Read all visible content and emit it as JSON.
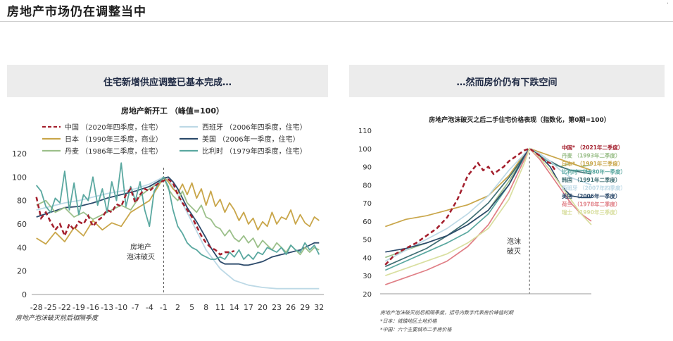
{
  "page": {
    "title": "房地产市场仍在调整当中",
    "corner_mark": "·"
  },
  "left_panel": {
    "header": "住宅新增供应调整已基本完成…"
  },
  "right_panel": {
    "header": "…然而房价仍有下跌空间"
  },
  "chart_data": [
    {
      "type": "line",
      "title": "房地产新开工 （峰值=100）",
      "xlabel": "",
      "ylabel": "",
      "ylim": [
        0,
        120
      ],
      "xlim": [
        -29,
        33
      ],
      "xticks": [
        -28,
        -25,
        -22,
        -19,
        -16,
        -13,
        -10,
        -7,
        -4,
        -1,
        2,
        5,
        8,
        11,
        14,
        17,
        20,
        23,
        26,
        29,
        32
      ],
      "yticks": [
        0,
        20,
        40,
        60,
        80,
        100,
        120
      ],
      "annotation": "房地产\n泡沫破灭",
      "annotation_x": -1,
      "footnote": "房地产泡沫破灭前后相隔季度",
      "legend_position": "top",
      "series": [
        {
          "name": "中国 （2020年四季度，住宅）",
          "color": "#a4202e",
          "dash": true,
          "x": [
            -28,
            -27,
            -26,
            -25,
            -24,
            -23,
            -22,
            -21,
            -20,
            -19,
            -18,
            -17,
            -16,
            -15,
            -14,
            -13,
            -12,
            -11,
            -10,
            -9,
            -8,
            -7,
            -6,
            -5,
            -4,
            -3,
            -2,
            -1,
            0,
            1,
            2,
            3,
            4,
            5,
            6,
            7,
            8,
            9,
            10,
            11,
            12,
            13,
            14
          ],
          "y": [
            83,
            65,
            70,
            62,
            55,
            60,
            50,
            60,
            55,
            62,
            60,
            67,
            58,
            63,
            66,
            72,
            70,
            77,
            75,
            85,
            90,
            78,
            85,
            90,
            88,
            92,
            95,
            97,
            98,
            95,
            85,
            78,
            72,
            66,
            58,
            50,
            44,
            40,
            38,
            34,
            36,
            36,
            37
          ]
        },
        {
          "name": "西班牙 （2006年四季度，住宅）",
          "color": "#bdd9e6",
          "dash": false,
          "x": [
            -28,
            -25,
            -22,
            -19,
            -16,
            -13,
            -10,
            -7,
            -4,
            -1,
            0,
            2,
            5,
            8,
            11,
            14,
            17,
            20,
            23,
            26,
            29,
            32
          ],
          "y": [
            72,
            75,
            78,
            80,
            83,
            86,
            88,
            90,
            94,
            100,
            98,
            85,
            62,
            38,
            22,
            12,
            8,
            6,
            5,
            5,
            5,
            5
          ]
        },
        {
          "name": "日本 （1990年三季度，商业）",
          "color": "#c9a64a",
          "dash": false,
          "x": [
            -28,
            -26,
            -24,
            -22,
            -20,
            -18,
            -16,
            -14,
            -12,
            -10,
            -8,
            -6,
            -4,
            -2,
            -1,
            0,
            1,
            2,
            3,
            4,
            5,
            6,
            7,
            8,
            9,
            10,
            11,
            12,
            13,
            14,
            15,
            16,
            17,
            18,
            19,
            20,
            21,
            22,
            23,
            24,
            25,
            26,
            27,
            28,
            29,
            30,
            31,
            32
          ],
          "y": [
            48,
            43,
            53,
            45,
            57,
            50,
            63,
            55,
            61,
            58,
            70,
            75,
            80,
            93,
            100,
            96,
            90,
            86,
            94,
            85,
            95,
            82,
            90,
            76,
            88,
            75,
            81,
            70,
            78,
            72,
            63,
            70,
            60,
            65,
            55,
            62,
            58,
            70,
            60,
            66,
            64,
            72,
            60,
            68,
            61,
            58,
            66,
            63
          ]
        },
        {
          "name": "美国 （2006年一季度，住宅）",
          "color": "#2c4a6b",
          "dash": false,
          "x": [
            -28,
            -25,
            -22,
            -19,
            -16,
            -13,
            -10,
            -7,
            -4,
            -1,
            0,
            1,
            2,
            3,
            4,
            5,
            6,
            7,
            8,
            9,
            10,
            11,
            12,
            13,
            14,
            15,
            16,
            17,
            18,
            19,
            20,
            21,
            22,
            23,
            24,
            25,
            26,
            27,
            28,
            29,
            30,
            31,
            32
          ],
          "y": [
            66,
            70,
            74,
            75,
            78,
            82,
            85,
            88,
            92,
            99,
            100,
            96,
            90,
            82,
            74,
            68,
            62,
            55,
            48,
            40,
            34,
            28,
            26,
            26,
            26,
            26,
            25,
            25,
            26,
            27,
            28,
            30,
            32,
            33,
            34,
            35,
            36,
            37,
            38,
            40,
            42,
            44,
            44
          ]
        },
        {
          "name": "丹麦 （1986年二季度，住宅）",
          "color": "#9cc08b",
          "dash": false,
          "x": [
            -28,
            -26,
            -24,
            -22,
            -20,
            -18,
            -16,
            -14,
            -12,
            -10,
            -8,
            -6,
            -4,
            -2,
            -1,
            0,
            1,
            2,
            3,
            4,
            5,
            6,
            7,
            8,
            9,
            10,
            11,
            12,
            13,
            14,
            15,
            16,
            17,
            18,
            19,
            20,
            21,
            22,
            23,
            24,
            25,
            26,
            27,
            28,
            29,
            30,
            31,
            32
          ],
          "y": [
            76,
            80,
            70,
            74,
            66,
            70,
            64,
            68,
            72,
            76,
            72,
            84,
            90,
            95,
            100,
            90,
            84,
            80,
            88,
            78,
            74,
            70,
            76,
            66,
            64,
            58,
            56,
            50,
            55,
            48,
            45,
            50,
            44,
            48,
            40,
            46,
            42,
            38,
            44,
            40,
            36,
            42,
            38,
            34,
            40,
            36,
            40,
            38
          ]
        },
        {
          "name": "比利时 （1979年四季度，住宅）",
          "color": "#5aa8a0",
          "dash": false,
          "x": [
            -28,
            -27,
            -26,
            -25,
            -24,
            -23,
            -22,
            -21,
            -20,
            -19,
            -18,
            -17,
            -16,
            -15,
            -14,
            -13,
            -12,
            -11,
            -10,
            -9,
            -8,
            -7,
            -6,
            -5,
            -4,
            -3,
            -2,
            -1,
            0,
            1,
            2,
            3,
            4,
            5,
            6,
            7,
            8,
            9,
            10,
            11,
            12,
            13,
            14,
            15,
            16,
            17,
            18,
            19,
            20,
            21,
            22,
            23,
            24,
            25,
            26,
            27,
            28,
            29,
            30,
            31,
            32
          ],
          "y": [
            93,
            88,
            75,
            70,
            82,
            78,
            105,
            72,
            95,
            68,
            85,
            80,
            100,
            76,
            90,
            70,
            96,
            80,
            112,
            75,
            92,
            80,
            96,
            72,
            58,
            88,
            95,
            100,
            92,
            72,
            58,
            52,
            44,
            40,
            38,
            34,
            32,
            30,
            30,
            32,
            30,
            36,
            32,
            38,
            30,
            34,
            30,
            36,
            34,
            40,
            38,
            36,
            40,
            34,
            42,
            38,
            36,
            44,
            38,
            42,
            34
          ]
        }
      ]
    },
    {
      "type": "line",
      "title": "房地产泡沫破灭之后二手住宅价格表现（指数化，第0期=100）",
      "xlabel": "",
      "ylabel": "",
      "ylim": [
        20,
        110
      ],
      "xlim": [
        -29,
        12
      ],
      "yticks": [
        20,
        30,
        40,
        50,
        60,
        70,
        80,
        90,
        100,
        110
      ],
      "annotation": "泡沫\n破灭",
      "annotation_x": 0,
      "footnote_lines": [
        "房地产泡沫破灭前后相隔季度，括号内数字代表房价峰值时期",
        "*日本：城镇地区土地价格",
        "*中国：六个主要城市二手房价格"
      ],
      "legend_position": "right",
      "series": [
        {
          "name": "中国* （2021年二季度）",
          "color": "#a4202e",
          "dash": true,
          "x": [
            -28,
            -26,
            -24,
            -22,
            -20,
            -18,
            -16,
            -14,
            -12,
            -10,
            -9,
            -8,
            -7,
            -6,
            -5,
            -4,
            -3,
            -2,
            -1,
            0,
            1,
            2,
            3,
            4,
            5
          ],
          "y": [
            36,
            42,
            45,
            48,
            52,
            56,
            62,
            72,
            85,
            92,
            88,
            90,
            86,
            88,
            90,
            93,
            95,
            97,
            99,
            100,
            98,
            96,
            93,
            92,
            88
          ]
        },
        {
          "name": "丹麦 （1993年二季度）",
          "color": "#9cc08b",
          "dash": false,
          "x": [
            -28,
            -24,
            -20,
            -16,
            -12,
            -8,
            -4,
            -1,
            0,
            2,
            4,
            6,
            8,
            10,
            12
          ],
          "y": [
            40,
            44,
            48,
            52,
            58,
            66,
            82,
            96,
            100,
            96,
            92,
            90,
            92,
            90,
            91
          ]
        },
        {
          "name": "日本* （1991年三季度）",
          "color": "#c9a64a",
          "dash": false,
          "x": [
            -28,
            -24,
            -20,
            -16,
            -12,
            -8,
            -4,
            -1,
            0,
            2,
            4,
            6,
            8,
            10,
            12
          ],
          "y": [
            57,
            61,
            63,
            66,
            69,
            74,
            85,
            97,
            100,
            98,
            96,
            94,
            92,
            90,
            88
          ]
        },
        {
          "name": "比利时 （1980年一季度）",
          "color": "#5aa8a0",
          "dash": false,
          "x": [
            -28,
            -24,
            -20,
            -16,
            -12,
            -8,
            -4,
            -1,
            0,
            2,
            4,
            6,
            8,
            10,
            12
          ],
          "y": [
            33,
            38,
            43,
            48,
            54,
            64,
            80,
            95,
            100,
            96,
            92,
            90,
            88,
            88,
            87
          ]
        },
        {
          "name": "韩国 （1991年二季度）",
          "color": "#3f6e73",
          "dash": false,
          "x": [
            -28,
            -24,
            -20,
            -16,
            -12,
            -8,
            -4,
            -1,
            0,
            2,
            4,
            6,
            8,
            10,
            12
          ],
          "y": [
            35,
            40,
            45,
            52,
            60,
            70,
            84,
            96,
            100,
            97,
            93,
            90,
            88,
            87,
            86
          ]
        },
        {
          "name": "西班牙 （2007年四季度）",
          "color": "#bdd9e6",
          "dash": false,
          "x": [
            -28,
            -24,
            -20,
            -16,
            -12,
            -8,
            -4,
            -1,
            0,
            2,
            4,
            6,
            8,
            10,
            12
          ],
          "y": [
            38,
            44,
            50,
            56,
            64,
            74,
            88,
            97,
            100,
            97,
            93,
            88,
            84,
            82,
            80
          ]
        },
        {
          "name": "美国 （2006年一季度）",
          "color": "#2c4a6b",
          "dash": false,
          "x": [
            -28,
            -24,
            -20,
            -16,
            -12,
            -8,
            -4,
            -1,
            0,
            2,
            4,
            6,
            8,
            10,
            12
          ],
          "y": [
            43,
            45,
            48,
            52,
            58,
            66,
            80,
            96,
            100,
            96,
            90,
            80,
            74,
            73,
            73
          ]
        },
        {
          "name": "荷兰 （1978年二季度）",
          "color": "#e07f86",
          "dash": false,
          "x": [
            -28,
            -24,
            -20,
            -16,
            -12,
            -8,
            -4,
            -1,
            0,
            2,
            4,
            6,
            8,
            10,
            12
          ],
          "y": [
            25,
            29,
            33,
            38,
            46,
            58,
            76,
            94,
            100,
            94,
            86,
            78,
            70,
            64,
            60
          ]
        },
        {
          "name": "瑞士 （1990年三季度）",
          "color": "#d9dfa0",
          "dash": false,
          "x": [
            -28,
            -24,
            -20,
            -16,
            -12,
            -8,
            -4,
            -1,
            0,
            2,
            4,
            6,
            8,
            10,
            12
          ],
          "y": [
            30,
            34,
            38,
            42,
            48,
            56,
            72,
            92,
            100,
            95,
            88,
            80,
            72,
            64,
            58
          ]
        }
      ]
    }
  ]
}
